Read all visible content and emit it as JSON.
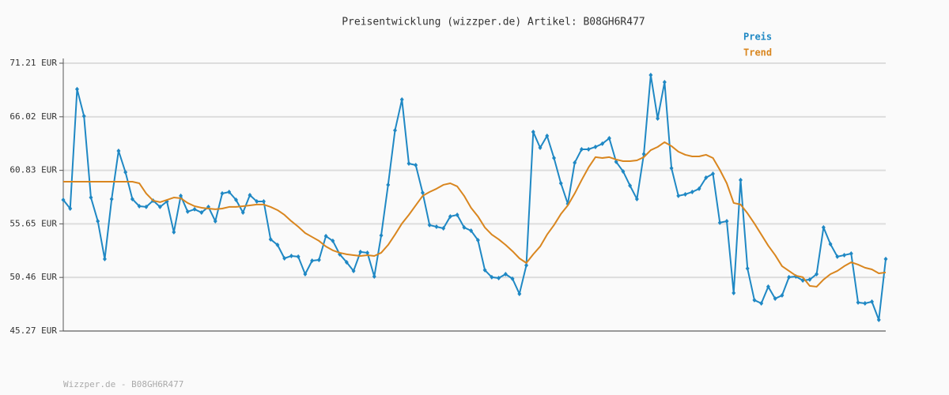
{
  "chart_data": {
    "type": "line",
    "title": "Preisentwicklung (wizzper.de) Artikel: B08GH6R477",
    "ylim": [
      45.27,
      71.21
    ],
    "yticks": [
      {
        "value": 45.27,
        "label": "45.27 EUR"
      },
      {
        "value": 50.46,
        "label": "50.46 EUR"
      },
      {
        "value": 55.65,
        "label": "55.65 EUR"
      },
      {
        "value": 60.83,
        "label": "60.83 EUR"
      },
      {
        "value": 66.02,
        "label": "66.02 EUR"
      },
      {
        "value": 71.21,
        "label": "71.21 EUR"
      }
    ],
    "grid": true,
    "legend": "top-right",
    "series": [
      {
        "name": "Preis",
        "color": "#1f88c4",
        "markers": true,
        "values": [
          57.97,
          57.13,
          68.69,
          66.08,
          58.2,
          55.91,
          52.24,
          58.05,
          62.72,
          60.65,
          58.05,
          57.36,
          57.29,
          57.9,
          57.29,
          57.82,
          54.84,
          58.36,
          56.83,
          57.06,
          56.75,
          57.29,
          55.91,
          58.59,
          58.74,
          57.97,
          56.75,
          58.43,
          57.82,
          57.82,
          54.15,
          53.61,
          52.31,
          52.54,
          52.47,
          50.78,
          52.08,
          52.16,
          54.46,
          54.0,
          52.7,
          51.93,
          51.09,
          52.93,
          52.85,
          50.55,
          54.53,
          59.43,
          64.71,
          67.69,
          61.49,
          61.34,
          58.66,
          55.53,
          55.37,
          55.22,
          56.37,
          56.52,
          55.3,
          54.99,
          54.07,
          51.17,
          50.48,
          50.4,
          50.78,
          50.33,
          48.87,
          51.63,
          64.55,
          63.02,
          64.17,
          62.03,
          59.58,
          57.59,
          61.57,
          62.87,
          62.87,
          63.1,
          63.41,
          63.94,
          61.65,
          60.73,
          59.35,
          58.05,
          62.41,
          70.06,
          65.85,
          69.37,
          61.04,
          58.36,
          58.51,
          58.74,
          59.05,
          60.12,
          60.5,
          55.76,
          55.91,
          48.95,
          59.89,
          51.32,
          48.26,
          47.95,
          49.56,
          48.41,
          48.72,
          50.48,
          50.55,
          50.17,
          50.25,
          50.78,
          55.3,
          53.69,
          52.47,
          52.62,
          52.77,
          48.03,
          47.95,
          48.11,
          46.35,
          52.24
        ]
      },
      {
        "name": "Trend",
        "color": "#d9861f",
        "markers": false,
        "values": [
          59.73,
          59.73,
          59.73,
          59.73,
          59.73,
          59.73,
          59.73,
          59.73,
          59.73,
          59.73,
          59.73,
          59.58,
          58.59,
          57.9,
          57.75,
          57.97,
          58.2,
          58.13,
          57.67,
          57.36,
          57.21,
          57.13,
          57.06,
          57.13,
          57.29,
          57.29,
          57.36,
          57.44,
          57.52,
          57.52,
          57.29,
          56.98,
          56.52,
          55.91,
          55.37,
          54.76,
          54.38,
          54.0,
          53.46,
          53.08,
          52.85,
          52.7,
          52.62,
          52.54,
          52.62,
          52.54,
          52.85,
          53.61,
          54.61,
          55.68,
          56.52,
          57.44,
          58.36,
          58.74,
          59.05,
          59.43,
          59.58,
          59.28,
          58.36,
          57.21,
          56.37,
          55.3,
          54.61,
          54.15,
          53.61,
          53.0,
          52.31,
          51.86,
          52.7,
          53.46,
          54.61,
          55.53,
          56.6,
          57.44,
          58.59,
          59.89,
          61.11,
          62.11,
          62.03,
          62.11,
          61.88,
          61.72,
          61.72,
          61.8,
          62.11,
          62.79,
          63.1,
          63.56,
          63.18,
          62.64,
          62.34,
          62.18,
          62.18,
          62.34,
          62.03,
          60.88,
          59.58,
          57.67,
          57.52,
          56.67,
          55.68,
          54.61,
          53.54,
          52.62,
          51.55,
          51.09,
          50.63,
          50.48,
          49.64,
          49.56,
          50.25,
          50.78,
          51.09,
          51.55,
          51.93,
          51.7,
          51.4,
          51.24,
          50.86,
          50.94
        ]
      }
    ]
  },
  "footer": "Wizzper.de - B08GH6R477"
}
